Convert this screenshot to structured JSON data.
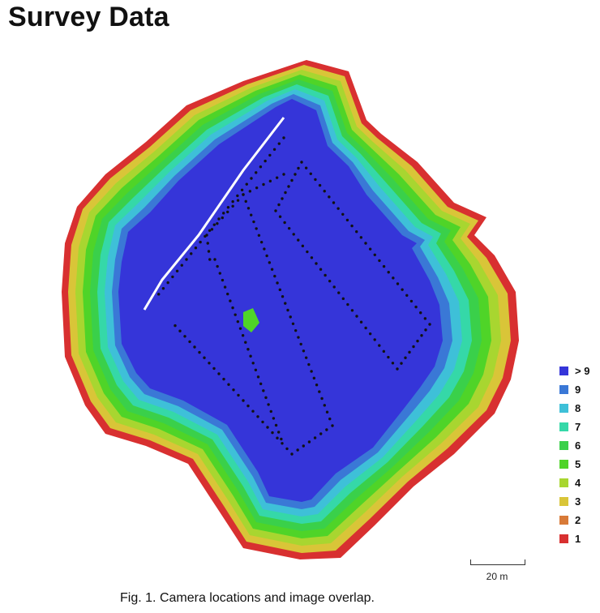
{
  "title": "Survey Data",
  "legend": {
    "items": [
      {
        "label": "> 9",
        "color": "#3535d9"
      },
      {
        "label": "9",
        "color": "#3a78d6"
      },
      {
        "label": "8",
        "color": "#3ec0d8"
      },
      {
        "label": "7",
        "color": "#35d8a8"
      },
      {
        "label": "6",
        "color": "#3ad04a"
      },
      {
        "label": "5",
        "color": "#4fd428"
      },
      {
        "label": "4",
        "color": "#a8d630"
      },
      {
        "label": "3",
        "color": "#d9c538"
      },
      {
        "label": "2",
        "color": "#d87a38"
      },
      {
        "label": "1",
        "color": "#d83030"
      }
    ]
  },
  "scale": {
    "label": "20 m"
  },
  "caption": "Fig. 1. Camera locations and image overlap.",
  "map": {
    "camera_marker_color": "#111111",
    "gap_color": "#ffffff"
  }
}
